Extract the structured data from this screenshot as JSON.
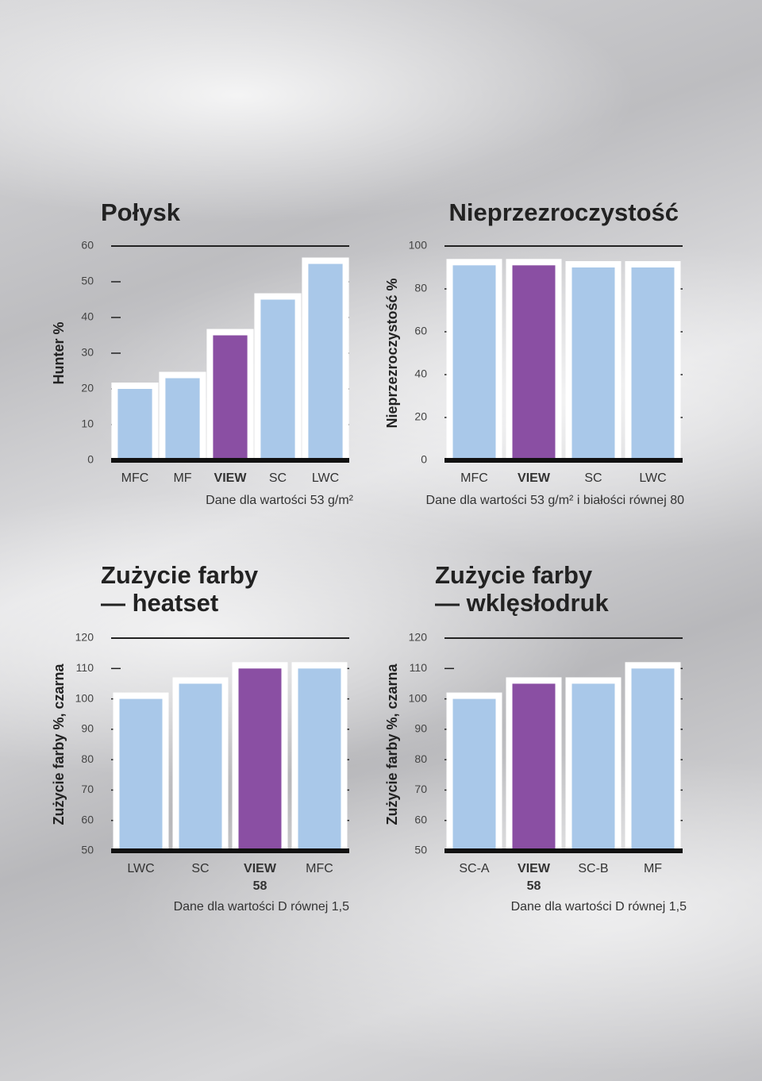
{
  "chart_data": [
    {
      "type": "bar",
      "title": [
        "Połysk"
      ],
      "ylabel": "Hunter %",
      "note": "Dane dla wartości 53 g/m²",
      "categories": [
        "MFC",
        "MF",
        "VIEW",
        "SC",
        "LWC"
      ],
      "category_notes": [
        null,
        null,
        null,
        null,
        null
      ],
      "values": [
        20,
        23,
        35,
        45,
        55
      ],
      "color": "#a9c8e9",
      "colors": [
        "#a9c8e9",
        "#a9c8e9",
        "#8a4fa3",
        "#a9c8e9",
        "#a9c8e9"
      ],
      "ylim": [
        0,
        60
      ],
      "yticks": [
        0,
        10,
        20,
        30,
        40,
        50,
        60
      ]
    },
    {
      "type": "bar",
      "title": [
        "Nieprzezroczystość"
      ],
      "ylabel": "Nieprzezroczystość %",
      "note": "Dane dla wartości 53 g/m² i białości równej 80",
      "categories": [
        "MFC",
        "VIEW",
        "SC",
        "LWC"
      ],
      "category_notes": [
        null,
        null,
        null,
        null
      ],
      "values": [
        91,
        91,
        90,
        90
      ],
      "color": "#a9c8e9",
      "colors": [
        "#a9c8e9",
        "#8a4fa3",
        "#a9c8e9",
        "#a9c8e9"
      ],
      "ylim": [
        0,
        100
      ],
      "yticks": [
        0,
        20,
        40,
        60,
        80,
        100
      ]
    },
    {
      "type": "bar",
      "title": [
        "Zużycie farby",
        "— heatset"
      ],
      "ylabel": "Zużycie farby %, czarna",
      "note": "Dane dla wartości D równej 1,5",
      "categories": [
        "LWC",
        "SC",
        "VIEW",
        "MFC"
      ],
      "category_notes": [
        null,
        null,
        "58",
        null
      ],
      "values": [
        100,
        105,
        110,
        110
      ],
      "color": "#a9c8e9",
      "colors": [
        "#a9c8e9",
        "#a9c8e9",
        "#8a4fa3",
        "#a9c8e9"
      ],
      "ylim": [
        50,
        120
      ],
      "yticks": [
        50,
        60,
        70,
        80,
        90,
        100,
        110,
        120
      ]
    },
    {
      "type": "bar",
      "title": [
        "Zużycie farby",
        "— wklęsłodruk"
      ],
      "ylabel": "Zużycie farby %, czarna",
      "note": "Dane dla wartości D równej 1,5",
      "categories": [
        "SC-A",
        "VIEW",
        "SC-B",
        "MF"
      ],
      "category_notes": [
        null,
        "58",
        null,
        null
      ],
      "values": [
        100,
        105,
        105,
        110
      ],
      "color": "#a9c8e9",
      "colors": [
        "#a9c8e9",
        "#8a4fa3",
        "#a9c8e9",
        "#a9c8e9"
      ],
      "ylim": [
        50,
        120
      ],
      "yticks": [
        50,
        60,
        70,
        80,
        90,
        100,
        110,
        120
      ]
    }
  ]
}
